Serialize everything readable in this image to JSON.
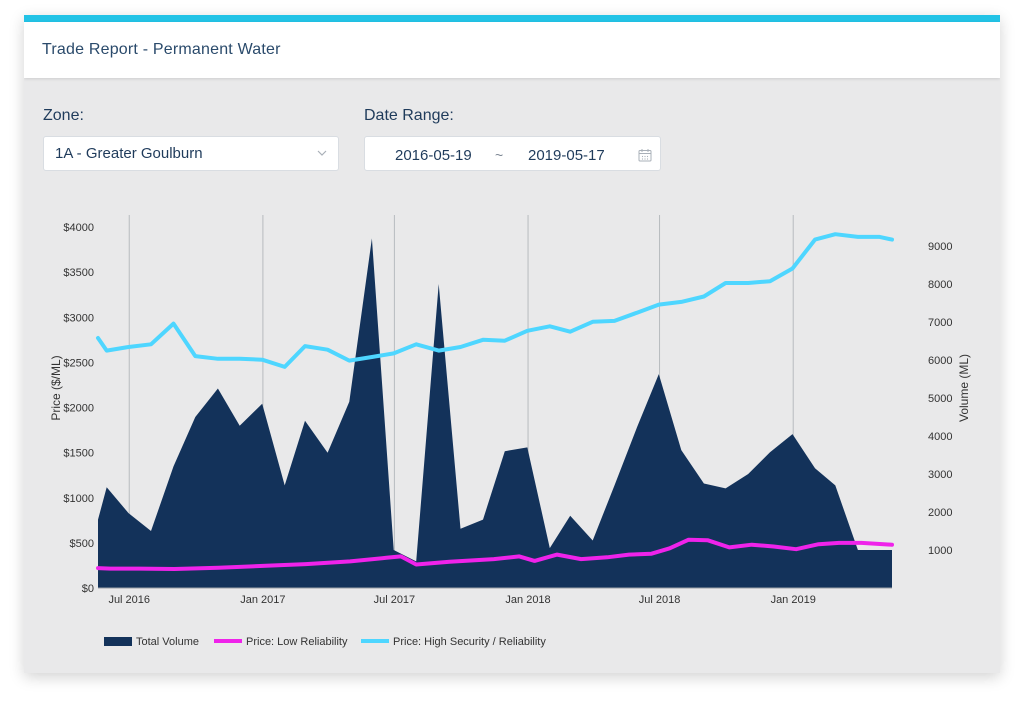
{
  "header": {
    "title": "Trade Report - Permanent Water"
  },
  "filters": {
    "zone_label": "Zone:",
    "zone_value": "1A - Greater Goulburn",
    "date_label": "Date Range:",
    "date_start": "2016-05-19",
    "date_separator": "~",
    "date_end": "2019-05-17"
  },
  "icons": {
    "select": "chevron-down-icon",
    "date": "calendar-icon"
  },
  "colors": {
    "volume": "#13325a",
    "low": "#ef23ea",
    "high": "#4ed6ff"
  },
  "chart_data": {
    "type": "area",
    "title": "",
    "xlabel": "",
    "ylabel": "Price ($/ML)",
    "y2label": "Volume (ML)",
    "ylim": [
      0,
      4000
    ],
    "y2lim": [
      0,
      9500
    ],
    "x_axis_min": "2016-05-19",
    "x_axis_max": "2019-05-17",
    "y_ticks": [
      "$0",
      "$500",
      "$1000",
      "$1500",
      "$2000",
      "$2500",
      "$3000",
      "$3500",
      "$4000"
    ],
    "y_tick_values": [
      0,
      500,
      1000,
      1500,
      2000,
      2500,
      3000,
      3500,
      4000
    ],
    "y2_ticks": [
      "1000",
      "2000",
      "3000",
      "4000",
      "5000",
      "6000",
      "7000",
      "8000",
      "9000"
    ],
    "y2_tick_values": [
      1000,
      2000,
      3000,
      4000,
      5000,
      6000,
      7000,
      8000,
      9000
    ],
    "x_ticks": [
      "Jul 2016",
      "Jan 2017",
      "Jul 2017",
      "Jan 2018",
      "Jul 2018",
      "Jan 2019"
    ],
    "x_tick_dates": [
      "2016-07-01",
      "2017-01-01",
      "2017-07-01",
      "2018-01-01",
      "2018-07-01",
      "2019-01-01"
    ],
    "grid": "vertical",
    "legend_position": "bottom-left",
    "series": [
      {
        "name": "Total Volume",
        "type": "area",
        "axis": "right",
        "x": [
          "2016-05-19",
          "2016-05-31",
          "2016-06-30",
          "2016-07-31",
          "2016-08-31",
          "2016-09-30",
          "2016-10-31",
          "2016-11-30",
          "2016-12-31",
          "2017-01-31",
          "2017-02-28",
          "2017-03-31",
          "2017-04-30",
          "2017-05-31",
          "2017-06-30",
          "2017-07-31",
          "2017-08-31",
          "2017-09-30",
          "2017-10-31",
          "2017-11-30",
          "2017-12-31",
          "2018-01-31",
          "2018-02-28",
          "2018-03-31",
          "2018-04-30",
          "2018-05-31",
          "2018-06-30",
          "2018-07-31",
          "2018-08-31",
          "2018-09-30",
          "2018-10-31",
          "2018-11-30",
          "2018-12-31",
          "2019-01-31",
          "2019-02-28",
          "2019-03-31",
          "2019-04-30",
          "2019-05-17"
        ],
        "values": [
          1800,
          2650,
          1970,
          1500,
          3200,
          4500,
          5250,
          4270,
          4850,
          2700,
          4400,
          3560,
          4900,
          9200,
          1000,
          700,
          8000,
          1560,
          1800,
          3600,
          3700,
          1050,
          1900,
          1250,
          2700,
          4230,
          5630,
          3630,
          2750,
          2620,
          3000,
          3570,
          4050,
          3150,
          2700,
          1000,
          1000,
          1000
        ]
      },
      {
        "name": "Price: Low Reliability",
        "type": "line",
        "axis": "left",
        "x": [
          "2016-05-19",
          "2016-06-05",
          "2016-07-15",
          "2016-09-01",
          "2016-11-01",
          "2017-01-01",
          "2017-03-01",
          "2017-05-01",
          "2017-06-20",
          "2017-07-10",
          "2017-07-31",
          "2017-09-15",
          "2017-11-15",
          "2017-12-20",
          "2018-01-10",
          "2018-02-10",
          "2018-03-15",
          "2018-04-20",
          "2018-05-20",
          "2018-06-20",
          "2018-07-15",
          "2018-08-10",
          "2018-09-05",
          "2018-10-05",
          "2018-11-05",
          "2018-12-05",
          "2019-01-05",
          "2019-02-05",
          "2019-03-05",
          "2019-04-05",
          "2019-05-17"
        ],
        "values": [
          220,
          215,
          215,
          210,
          225,
          245,
          265,
          295,
          335,
          350,
          260,
          290,
          320,
          350,
          300,
          370,
          320,
          340,
          370,
          380,
          440,
          535,
          530,
          450,
          480,
          460,
          430,
          485,
          500,
          500,
          480
        ]
      },
      {
        "name": "Price: High Security / Reliability",
        "type": "line",
        "axis": "left",
        "x": [
          "2016-05-19",
          "2016-05-31",
          "2016-06-30",
          "2016-07-31",
          "2016-08-31",
          "2016-09-30",
          "2016-10-31",
          "2016-11-30",
          "2016-12-31",
          "2017-01-31",
          "2017-02-28",
          "2017-03-31",
          "2017-04-30",
          "2017-05-31",
          "2017-06-30",
          "2017-07-31",
          "2017-08-31",
          "2017-09-30",
          "2017-10-31",
          "2017-11-30",
          "2017-12-31",
          "2018-01-31",
          "2018-02-28",
          "2018-03-31",
          "2018-04-30",
          "2018-05-31",
          "2018-06-30",
          "2018-07-31",
          "2018-08-31",
          "2018-09-30",
          "2018-10-31",
          "2018-11-30",
          "2018-12-31",
          "2019-01-31",
          "2019-02-28",
          "2019-03-31",
          "2019-04-30",
          "2019-05-17"
        ],
        "values": [
          2770,
          2630,
          2670,
          2700,
          2930,
          2570,
          2540,
          2540,
          2530,
          2450,
          2680,
          2640,
          2520,
          2560,
          2600,
          2700,
          2630,
          2670,
          2750,
          2740,
          2850,
          2900,
          2840,
          2950,
          2960,
          3050,
          3140,
          3170,
          3230,
          3380,
          3380,
          3400,
          3540,
          3860,
          3920,
          3890,
          3890,
          3860
        ]
      }
    ]
  }
}
